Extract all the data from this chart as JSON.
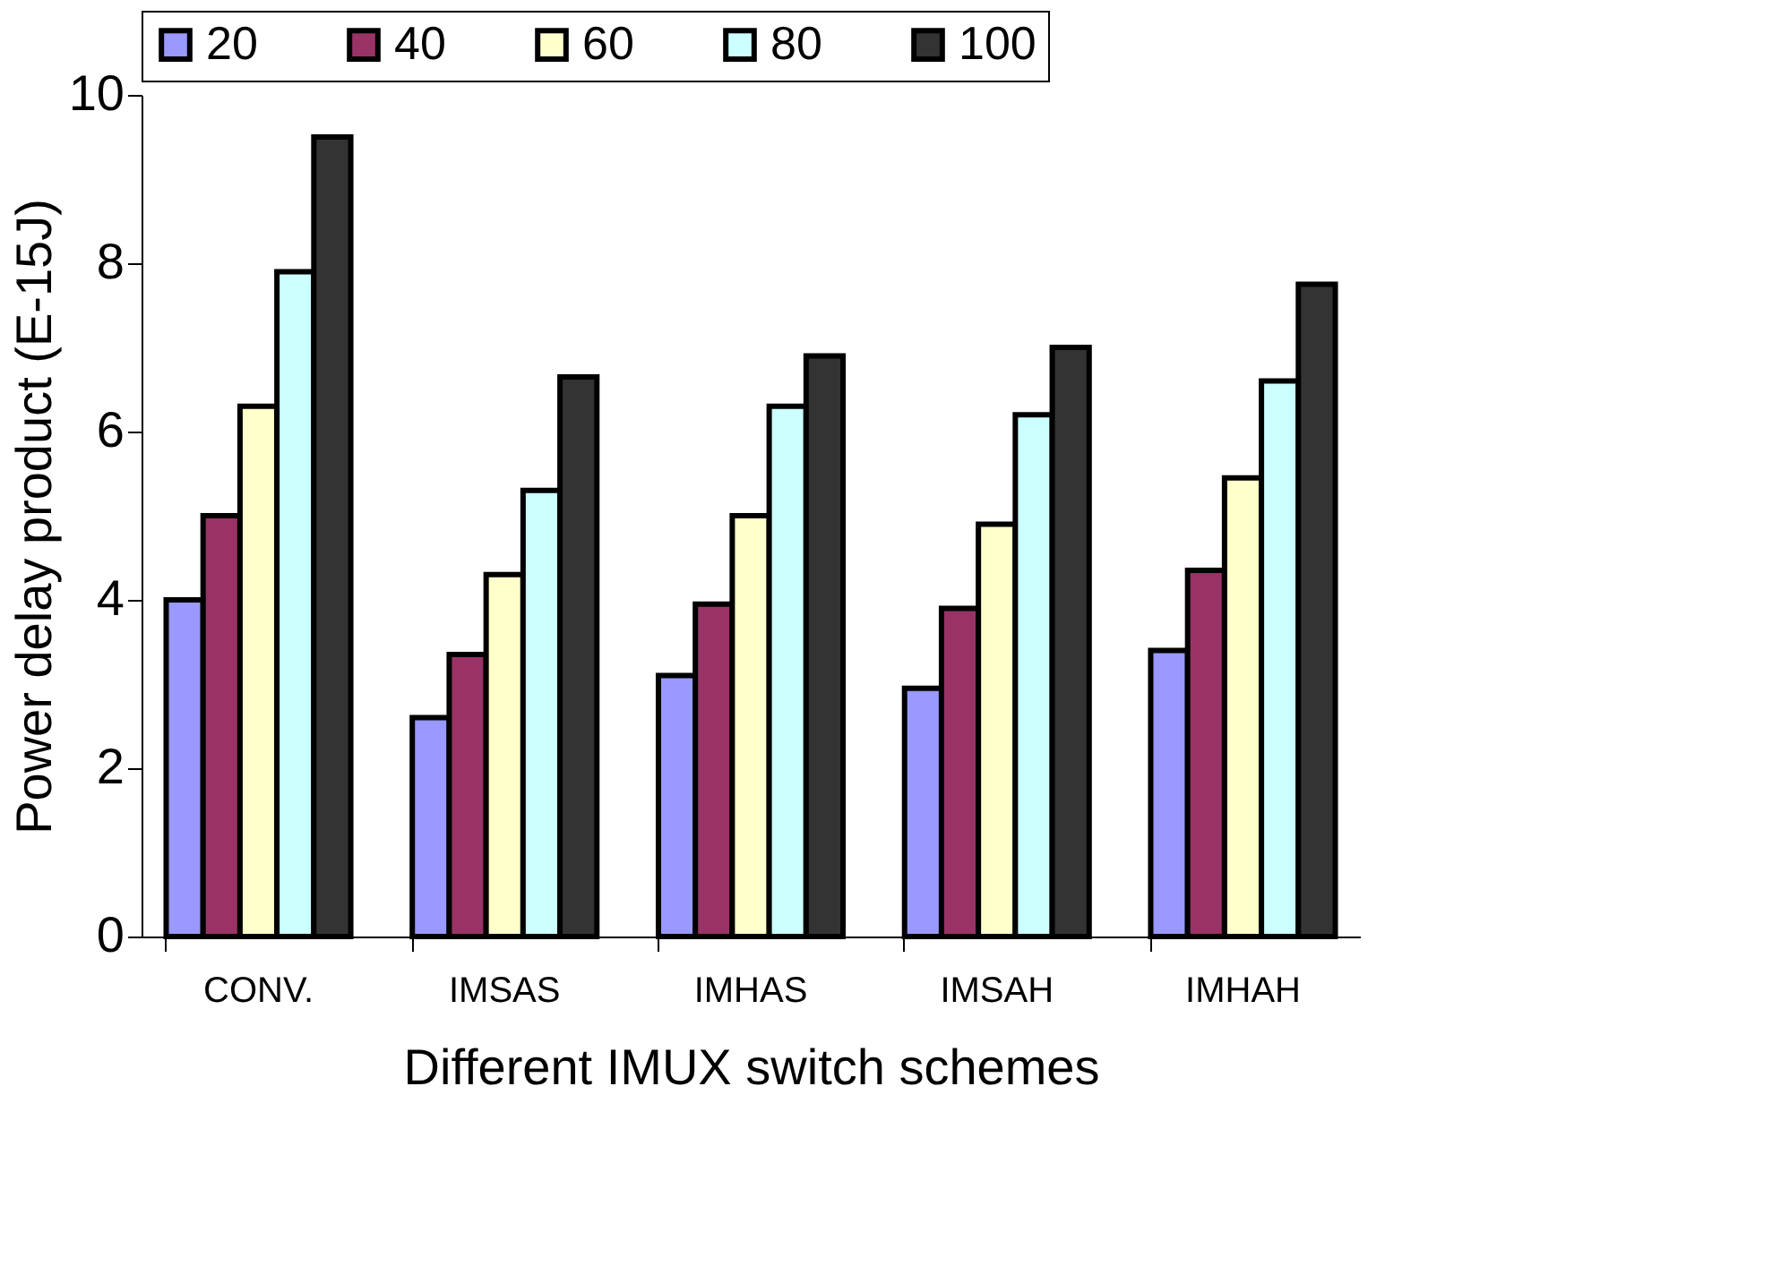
{
  "chart_data": {
    "type": "bar",
    "xlabel": "Different IMUX switch schemes",
    "ylabel": "Power delay product (E-15J)",
    "categories": [
      "CONV.",
      "IMSAS",
      "IMHAS",
      "IMSAH",
      "IMHAH"
    ],
    "series": [
      {
        "name": "20",
        "color": "#9999ff",
        "values": [
          4.0,
          2.6,
          3.1,
          2.95,
          3.4
        ]
      },
      {
        "name": "40",
        "color": "#993366",
        "values": [
          5.0,
          3.35,
          3.95,
          3.9,
          4.35
        ]
      },
      {
        "name": "60",
        "color": "#ffffcc",
        "values": [
          6.3,
          4.3,
          5.0,
          4.9,
          5.45
        ]
      },
      {
        "name": "80",
        "color": "#ccffff",
        "values": [
          7.9,
          5.3,
          6.3,
          6.2,
          6.6
        ]
      },
      {
        "name": "100",
        "color": "#333333",
        "values": [
          9.5,
          6.65,
          6.9,
          7.0,
          7.75
        ]
      }
    ],
    "ylim": [
      0,
      10
    ],
    "yticks": [
      0,
      2,
      4,
      6,
      8,
      10
    ],
    "grid": false,
    "legend": "top"
  }
}
